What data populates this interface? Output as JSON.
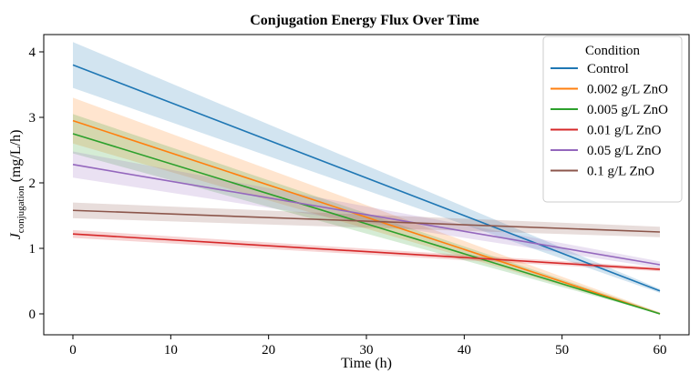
{
  "chart_data": {
    "type": "line",
    "title": "Conjugation Energy Flux Over Time",
    "xlabel": "Time (h)",
    "ylabel_main": "J",
    "ylabel_sub": "conjugation",
    "ylabel_unit": " (mg/L/h)",
    "xlim": [
      -3,
      63
    ],
    "ylim": [
      -0.3,
      4.4
    ],
    "xticks": [
      0,
      10,
      20,
      30,
      40,
      50,
      60
    ],
    "yticks": [
      0,
      1,
      2,
      3,
      4
    ],
    "grid": false,
    "legend": {
      "title": "Condition",
      "placement": "top-right"
    },
    "series": [
      {
        "name": "Control",
        "color": "#1f77b4",
        "x": [
          0,
          60
        ],
        "y": [
          3.8,
          0.35
        ],
        "band": [
          0.35,
          0.03
        ]
      },
      {
        "name": "0.002 g/L ZnO",
        "color": "#ff7f0e",
        "x": [
          0,
          60
        ],
        "y": [
          2.95,
          0.0
        ],
        "band": [
          0.35,
          0.02
        ]
      },
      {
        "name": "0.005 g/L ZnO",
        "color": "#2ca02c",
        "x": [
          0,
          60
        ],
        "y": [
          2.75,
          0.0
        ],
        "band": [
          0.3,
          0.02
        ]
      },
      {
        "name": "0.01 g/L ZnO",
        "color": "#d62728",
        "x": [
          0,
          60
        ],
        "y": [
          1.22,
          0.68
        ],
        "band": [
          0.06,
          0.03
        ]
      },
      {
        "name": "0.05 g/L ZnO",
        "color": "#9467bd",
        "x": [
          0,
          60
        ],
        "y": [
          2.28,
          0.75
        ],
        "band": [
          0.2,
          0.05
        ]
      },
      {
        "name": "0.1 g/L ZnO",
        "color": "#8c564b",
        "x": [
          0,
          60
        ],
        "y": [
          1.58,
          1.25
        ],
        "band": [
          0.12,
          0.08
        ]
      }
    ]
  }
}
